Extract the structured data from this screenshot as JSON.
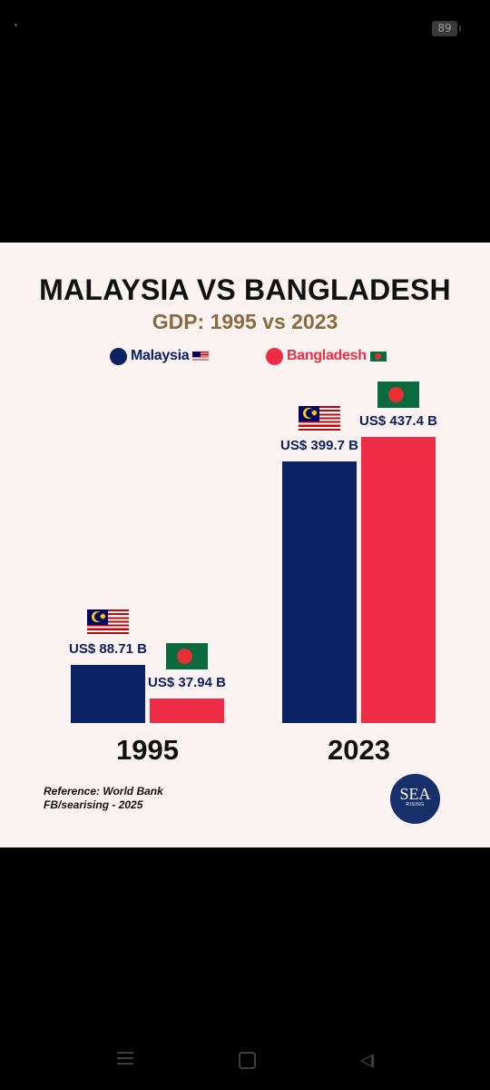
{
  "status_bar": {
    "battery": "89"
  },
  "infographic": {
    "title": "MALAYSIA VS BANGLADESH",
    "subtitle": "GDP: 1995 vs 2023",
    "legend": [
      {
        "name": "Malaysia",
        "color": "#0b2265",
        "flag": "malaysia-flag-icon"
      },
      {
        "name": "Bangladesh",
        "color": "#f02b45",
        "flag": "bangladesh-flag-icon"
      }
    ],
    "reference_line": "Reference: World Bank",
    "credit_line": "FB/searising - 2025",
    "logo": {
      "text": "SEA",
      "subtext": "RISING"
    }
  },
  "chart_data": {
    "type": "bar",
    "title": "MALAYSIA VS BANGLADESH",
    "subtitle": "GDP: 1995 vs 2023",
    "categories": [
      "1995",
      "2023"
    ],
    "unit": "US$ B",
    "legend_position": "top",
    "grid": false,
    "ylim": [
      0,
      437.4
    ],
    "series": [
      {
        "name": "Malaysia",
        "color": "#0b2265",
        "values": [
          88.71,
          399.7
        ],
        "labels": [
          "US$ 88.71 B",
          "US$ 399.7 B"
        ]
      },
      {
        "name": "Bangladesh",
        "color": "#f02b45",
        "values": [
          37.94,
          437.4
        ],
        "labels": [
          "US$ 37.94 B",
          "US$ 437.4 B"
        ]
      }
    ]
  },
  "nav_bar": {
    "recents": "menu-lines-icon",
    "home": "home-square-icon",
    "back": "back-triangle-icon"
  }
}
